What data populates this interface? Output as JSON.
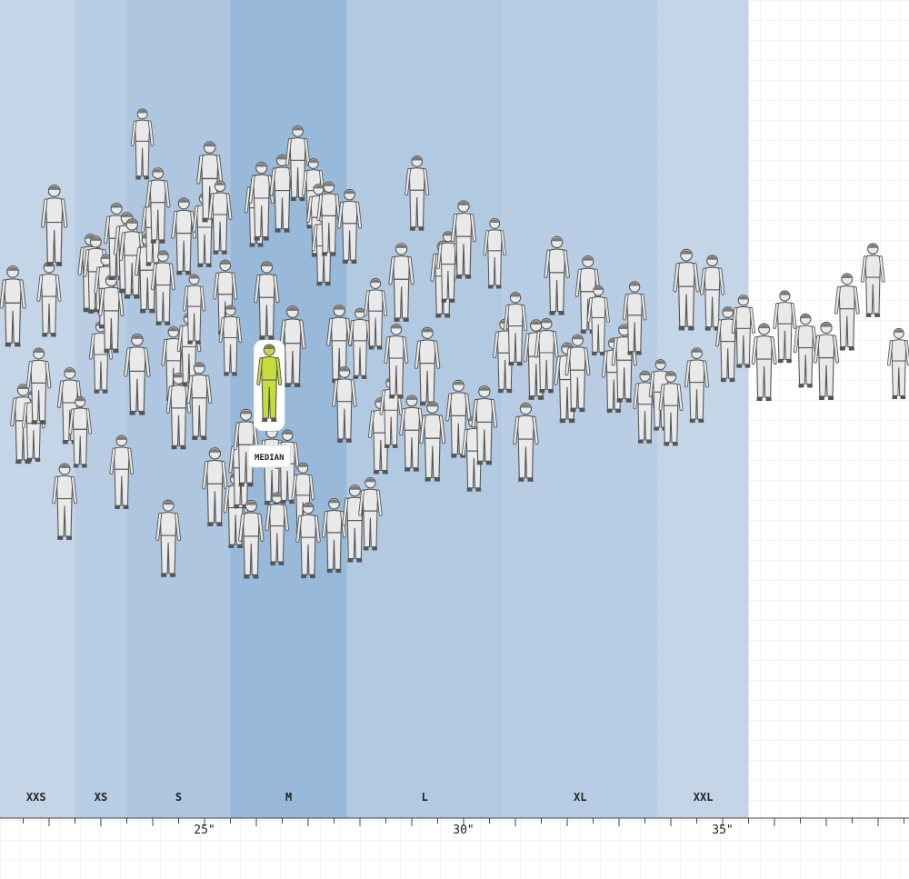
{
  "chart_data": {
    "type": "scatter",
    "title": "",
    "xlabel": "",
    "ylabel": "",
    "x_unit": "\"",
    "xlim": [
      21.0,
      38.6
    ],
    "grid": true,
    "size_bands": [
      {
        "label": "XXS",
        "start": 21.0,
        "end": 22.5,
        "color": "#c4d5e8"
      },
      {
        "label": "XS",
        "start": 22.5,
        "end": 23.5,
        "color": "#b8cde4"
      },
      {
        "label": "S",
        "start": 23.5,
        "end": 25.5,
        "color": "#aec6e0"
      },
      {
        "label": "M",
        "start": 25.5,
        "end": 27.75,
        "color": "#98b9da"
      },
      {
        "label": "L",
        "start": 27.75,
        "end": 30.75,
        "color": "#b2c9e2"
      },
      {
        "label": "XL",
        "start": 30.75,
        "end": 33.75,
        "color": "#b8cde4"
      },
      {
        "label": "XXL",
        "start": 33.75,
        "end": 35.5,
        "color": "#c4d5e8"
      }
    ],
    "ticks": [
      {
        "value": 25,
        "label": "25\""
      },
      {
        "value": 30,
        "label": "30\""
      },
      {
        "value": 35,
        "label": "35\""
      }
    ],
    "median": {
      "value": 26.25,
      "label": "MEDIAN",
      "color": "#c8dc3c"
    },
    "figure_color": "#e9e9e9",
    "figures": [
      {
        "x": 21.3
      },
      {
        "x": 21.5
      },
      {
        "x": 21.7
      },
      {
        "x": 21.8
      },
      {
        "x": 22.0
      },
      {
        "x": 22.1
      },
      {
        "x": 22.3
      },
      {
        "x": 22.4
      },
      {
        "x": 22.6
      },
      {
        "x": 22.8
      },
      {
        "x": 22.9
      },
      {
        "x": 23.0
      },
      {
        "x": 23.1
      },
      {
        "x": 23.2
      },
      {
        "x": 23.3
      },
      {
        "x": 23.4
      },
      {
        "x": 23.5
      },
      {
        "x": 23.6
      },
      {
        "x": 23.7
      },
      {
        "x": 23.8
      },
      {
        "x": 23.9
      },
      {
        "x": 24.0
      },
      {
        "x": 24.1
      },
      {
        "x": 24.2
      },
      {
        "x": 24.3
      },
      {
        "x": 24.4
      },
      {
        "x": 24.5
      },
      {
        "x": 24.6
      },
      {
        "x": 24.7
      },
      {
        "x": 24.8
      },
      {
        "x": 24.9
      },
      {
        "x": 25.0
      },
      {
        "x": 25.1
      },
      {
        "x": 25.2
      },
      {
        "x": 25.3
      },
      {
        "x": 25.4
      },
      {
        "x": 25.5
      },
      {
        "x": 25.6
      },
      {
        "x": 25.7
      },
      {
        "x": 25.8
      },
      {
        "x": 25.9
      },
      {
        "x": 26.0
      },
      {
        "x": 26.1
      },
      {
        "x": 26.2
      },
      {
        "x": 26.3
      },
      {
        "x": 26.4
      },
      {
        "x": 26.5
      },
      {
        "x": 26.6
      },
      {
        "x": 26.7
      },
      {
        "x": 26.8
      },
      {
        "x": 26.9
      },
      {
        "x": 27.0
      },
      {
        "x": 27.1
      },
      {
        "x": 27.2
      },
      {
        "x": 27.3
      },
      {
        "x": 27.4
      },
      {
        "x": 27.5
      },
      {
        "x": 27.6
      },
      {
        "x": 27.7
      },
      {
        "x": 27.8
      },
      {
        "x": 27.9
      },
      {
        "x": 28.0
      },
      {
        "x": 28.2
      },
      {
        "x": 28.3
      },
      {
        "x": 28.4
      },
      {
        "x": 28.6
      },
      {
        "x": 28.7
      },
      {
        "x": 28.8
      },
      {
        "x": 29.0
      },
      {
        "x": 29.1
      },
      {
        "x": 29.3
      },
      {
        "x": 29.4
      },
      {
        "x": 29.6
      },
      {
        "x": 29.7
      },
      {
        "x": 29.9
      },
      {
        "x": 30.0
      },
      {
        "x": 30.2
      },
      {
        "x": 30.4
      },
      {
        "x": 30.6
      },
      {
        "x": 30.8
      },
      {
        "x": 31.0
      },
      {
        "x": 31.2
      },
      {
        "x": 31.4
      },
      {
        "x": 31.6
      },
      {
        "x": 31.8
      },
      {
        "x": 32.0
      },
      {
        "x": 32.2
      },
      {
        "x": 32.4
      },
      {
        "x": 32.6
      },
      {
        "x": 32.9
      },
      {
        "x": 33.1
      },
      {
        "x": 33.3
      },
      {
        "x": 33.5
      },
      {
        "x": 33.8
      },
      {
        "x": 34.0
      },
      {
        "x": 34.3
      },
      {
        "x": 34.5
      },
      {
        "x": 34.8
      },
      {
        "x": 35.1
      },
      {
        "x": 35.4
      },
      {
        "x": 35.8
      },
      {
        "x": 36.2
      },
      {
        "x": 36.6
      },
      {
        "x": 37.0
      },
      {
        "x": 37.4
      },
      {
        "x": 37.9
      },
      {
        "x": 38.4
      }
    ]
  }
}
